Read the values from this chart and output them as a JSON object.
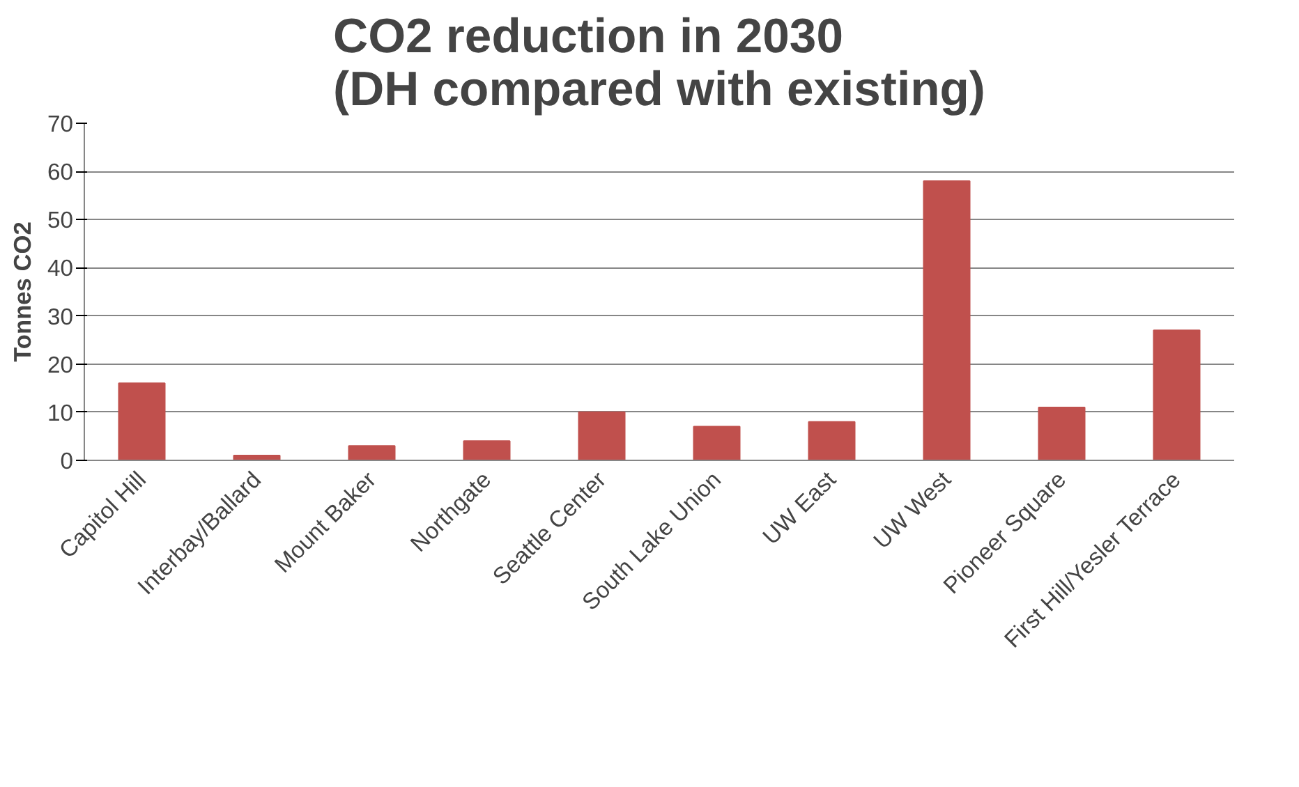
{
  "chart_data": {
    "type": "bar",
    "title": "CO2 reduction in 2030\n(DH compared with existing)",
    "ylabel": "Tonnes CO2",
    "categories": [
      "Capitol Hill",
      "Interbay/Ballard",
      "Mount Baker",
      "Northgate",
      "Seattle Center",
      "South Lake Union",
      "UW East",
      "UW West",
      "Pioneer Square",
      "First Hill/Yesler Terrace"
    ],
    "values": [
      16,
      1,
      3,
      4,
      10,
      7,
      8,
      58,
      11,
      27
    ],
    "color": "#c0504d",
    "ylim": [
      0,
      70
    ],
    "yticks": [
      0,
      10,
      20,
      30,
      40,
      50,
      60,
      70
    ],
    "grid": "y"
  }
}
